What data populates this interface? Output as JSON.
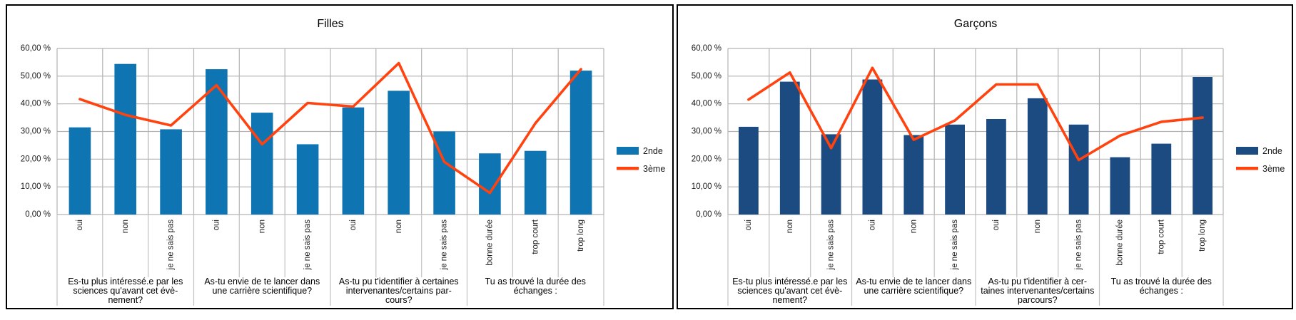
{
  "page": {
    "background_color": "#ffffff",
    "panel_border_color": "#000000",
    "gridline_color": "#b3b3b3",
    "separator_color": "#c2c2c2",
    "axis_text_color": "#1a1a1a"
  },
  "chart_data": [
    {
      "type": "combo-bar-line",
      "title": "Filles",
      "categories": [
        "oui",
        "non",
        "je ne sais pas",
        "oui",
        "non",
        "je ne sais pas",
        "oui",
        "non",
        "je ne sais pas",
        "bonne durée",
        "trop court",
        "trop long"
      ],
      "category_groups": [
        {
          "span": 3,
          "label_lines": [
            "Es-tu plus intéressé.e par les",
            "sciences qu'avant cet évè-",
            "nement?"
          ]
        },
        {
          "span": 3,
          "label_lines": [
            "As-tu envie de te lancer dans",
            "une carrière scientifique?"
          ]
        },
        {
          "span": 3,
          "label_lines": [
            "As-tu pu t'identifier à certaines",
            "intervenantes/certains par-",
            "cours?"
          ]
        },
        {
          "span": 3,
          "label_lines": [
            "Tu as trouvé la durée des",
            "échanges :"
          ]
        }
      ],
      "series": [
        {
          "name": "2nde",
          "type": "bar",
          "color": "#0e74b2",
          "values": [
            31.5,
            54.4,
            30.8,
            52.5,
            36.8,
            25.4,
            38.7,
            44.7,
            30.0,
            22.1,
            23.0,
            52.0
          ]
        },
        {
          "name": "3ème",
          "type": "line",
          "color": "#ff420e",
          "values": [
            41.7,
            36.0,
            32.2,
            46.7,
            25.4,
            40.3,
            39.0,
            54.7,
            19.0,
            7.8,
            33.0,
            52.5
          ]
        }
      ],
      "ylim": [
        0,
        60
      ],
      "y_tick_labels": [
        "0,00 %",
        "10,00 %",
        "20,00 %",
        "30,00 %",
        "40,00 %",
        "50,00 %",
        "60,00 %"
      ],
      "grid": true,
      "legend_position": "right"
    },
    {
      "type": "combo-bar-line",
      "title": "Garçons",
      "categories": [
        "oui",
        "non",
        "je ne sais pas",
        "oui",
        "non",
        "je ne sais pas",
        "oui",
        "non",
        "je ne sais pas",
        "bonne durée",
        "trop court",
        "trop long"
      ],
      "category_groups": [
        {
          "span": 3,
          "label_lines": [
            "Es-tu plus intéressé.e par les",
            "sciences qu'avant cet évè-",
            "nement?"
          ]
        },
        {
          "span": 3,
          "label_lines": [
            "As-tu envie de te lancer dans",
            "une carrière scientifique?"
          ]
        },
        {
          "span": 3,
          "label_lines": [
            "As-tu pu t'identifier à cer-",
            "taines intervenantes/certains",
            "parcours?"
          ]
        },
        {
          "span": 3,
          "label_lines": [
            "Tu as trouvé la durée des",
            "échanges :"
          ]
        }
      ],
      "series": [
        {
          "name": "2nde",
          "type": "bar",
          "color": "#1c4b82",
          "values": [
            31.7,
            48.0,
            29.0,
            48.8,
            28.7,
            32.5,
            34.5,
            42.0,
            32.5,
            20.7,
            25.6,
            49.7
          ]
        },
        {
          "name": "3ème",
          "type": "line",
          "color": "#ff420e",
          "values": [
            41.5,
            51.3,
            24.0,
            53.0,
            27.0,
            34.0,
            47.0,
            47.0,
            19.7,
            28.5,
            33.5,
            35.0
          ]
        }
      ],
      "ylim": [
        0,
        60
      ],
      "y_tick_labels": [
        "0,00 %",
        "10,00 %",
        "20,00 %",
        "30,00 %",
        "40,00 %",
        "50,00 %",
        "60,00 %"
      ],
      "grid": true,
      "legend_position": "right"
    }
  ]
}
